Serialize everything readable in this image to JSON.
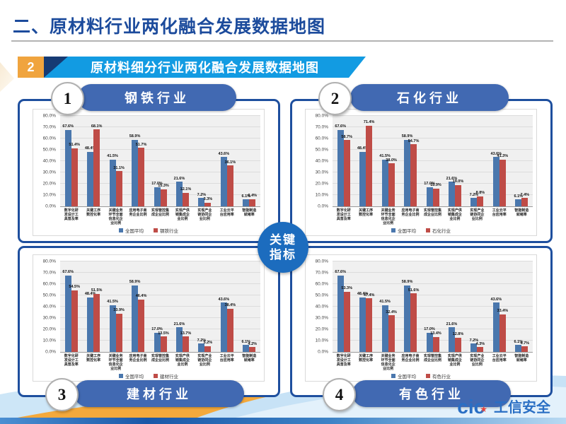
{
  "header": {
    "title": "二、原材料行业两化融合发展数据地图",
    "badge": "2",
    "banner": "原材料细分行业两化融合发展数据地图"
  },
  "center": {
    "line1": "关键",
    "line2": "指标"
  },
  "footer": {
    "logo_mark": "cic",
    "logo_star": "★",
    "logo_text": "工信安全"
  },
  "chart_data": [
    {
      "type": "bar",
      "number": "1",
      "title": "钢铁行业",
      "ylim": [
        0,
        80
      ],
      "grid": true,
      "legend_position": "bottom",
      "yticks": [
        "80.0%",
        "70.0%",
        "60.0%",
        "50.0%",
        "40.0%",
        "30.0%",
        "20.0%",
        "10.0%",
        "0.0%"
      ],
      "categories": [
        [
          "数字化研",
          "发设计工",
          "具普及率"
        ],
        [
          "关键工序",
          "数控化率"
        ],
        [
          "关键业务",
          "环节全面",
          "信息化企",
          "业比例"
        ],
        [
          "应用电子商",
          "务企业比例"
        ],
        [
          "实现管控集",
          "成企业比例"
        ],
        [
          "实现产供",
          "销集成企",
          "业比例"
        ],
        [
          "实现产业",
          "链协同企",
          "业比例"
        ],
        [
          "工业云平",
          "台应用率"
        ],
        [
          "智能制造",
          "就绪率"
        ]
      ],
      "series": [
        {
          "name": "全国平均",
          "color": "#4a77ad",
          "values": [
            67.6,
            48.4,
            41.5,
            58.9,
            17.0,
            21.6,
            7.2,
            43.6,
            6.1
          ]
        },
        {
          "name": "钢铁行业",
          "color": "#bf4c47",
          "values": [
            51.4,
            68.1,
            31.1,
            51.7,
            15.3,
            12.1,
            3.3,
            36.1,
            6.4
          ]
        }
      ]
    },
    {
      "type": "bar",
      "number": "2",
      "title": "石化行业",
      "ylim": [
        0,
        80
      ],
      "grid": true,
      "legend_position": "bottom",
      "yticks": [
        "80.0%",
        "70.0%",
        "60.0%",
        "50.0%",
        "40.0%",
        "30.0%",
        "20.0%",
        "10.0%",
        "0.0%"
      ],
      "categories": [
        [
          "数字化研",
          "发设计工",
          "具普及率"
        ],
        [
          "关键工序",
          "数控化率"
        ],
        [
          "关键业务",
          "环节全面",
          "信息化企",
          "业比例"
        ],
        [
          "应用电子商",
          "务企业比例"
        ],
        [
          "实现管控集",
          "成企业比例"
        ],
        [
          "实现产供",
          "销集成企",
          "业比例"
        ],
        [
          "实现产业",
          "链协同企",
          "业比例"
        ],
        [
          "工业云平",
          "台应用率"
        ],
        [
          "智能制造",
          "就绪率"
        ]
      ],
      "series": [
        {
          "name": "全国平均",
          "color": "#4a77ad",
          "values": [
            67.6,
            48.4,
            41.5,
            58.9,
            17.0,
            21.6,
            7.2,
            43.6,
            6.1
          ]
        },
        {
          "name": "石化行业",
          "color": "#bf4c47",
          "values": [
            58.7,
            71.4,
            38.0,
            54.7,
            15.9,
            19.0,
            8.8,
            41.3,
            7.4
          ]
        }
      ]
    },
    {
      "type": "bar",
      "number": "3",
      "title": "建材行业",
      "ylim": [
        0,
        80
      ],
      "grid": true,
      "legend_position": "bottom",
      "yticks": [
        "80.0%",
        "70.0%",
        "60.0%",
        "50.0%",
        "40.0%",
        "30.0%",
        "20.0%",
        "10.0%",
        "0.0%"
      ],
      "categories": [
        [
          "数字化研",
          "发设计工",
          "具普及率"
        ],
        [
          "关键工序",
          "数控化率"
        ],
        [
          "关键业务",
          "环节全面",
          "信息化企",
          "业比例"
        ],
        [
          "应用电子商",
          "务企业比例"
        ],
        [
          "实现管控集",
          "成企业比例"
        ],
        [
          "实现产供",
          "销集成企",
          "业比例"
        ],
        [
          "实现产业",
          "链协同企",
          "业比例"
        ],
        [
          "工业云平",
          "台应用率"
        ],
        [
          "智能制造",
          "就绪率"
        ]
      ],
      "series": [
        {
          "name": "全国平均",
          "color": "#4a77ad",
          "values": [
            67.6,
            48.4,
            41.5,
            58.9,
            17.0,
            21.6,
            7.2,
            43.6,
            6.1
          ]
        },
        {
          "name": "建材行业",
          "color": "#bf4c47",
          "values": [
            54.5,
            51.5,
            33.9,
            46.4,
            13.5,
            13.7,
            5.2,
            38.4,
            4.2
          ]
        }
      ]
    },
    {
      "type": "bar",
      "number": "4",
      "title": "有色行业",
      "ylim": [
        0,
        80
      ],
      "grid": true,
      "legend_position": "bottom",
      "yticks": [
        "80.0%",
        "70.0%",
        "60.0%",
        "50.0%",
        "40.0%",
        "30.0%",
        "20.0%",
        "10.0%",
        "0.0%"
      ],
      "categories": [
        [
          "数字化研",
          "发设计工",
          "具普及率"
        ],
        [
          "关键工序",
          "数控化率"
        ],
        [
          "关键业务",
          "环节全面",
          "信息化企",
          "业比例"
        ],
        [
          "应用电子商",
          "务企业比例"
        ],
        [
          "实现管控集",
          "成企业比例"
        ],
        [
          "实现产供",
          "销集成企",
          "业比例"
        ],
        [
          "实现产业",
          "链协同企",
          "业比例"
        ],
        [
          "工业云平",
          "台应用率"
        ],
        [
          "智能制造",
          "就绪率"
        ]
      ],
      "series": [
        {
          "name": "全国平均",
          "color": "#4a77ad",
          "values": [
            67.6,
            48.4,
            41.5,
            58.9,
            17.0,
            21.6,
            7.2,
            43.6,
            6.1
          ]
        },
        {
          "name": "有色行业",
          "color": "#bf4c47",
          "values": [
            53.3,
            47.4,
            32.4,
            51.6,
            13.4,
            12.8,
            4.3,
            33.4,
            4.7
          ]
        }
      ]
    }
  ]
}
